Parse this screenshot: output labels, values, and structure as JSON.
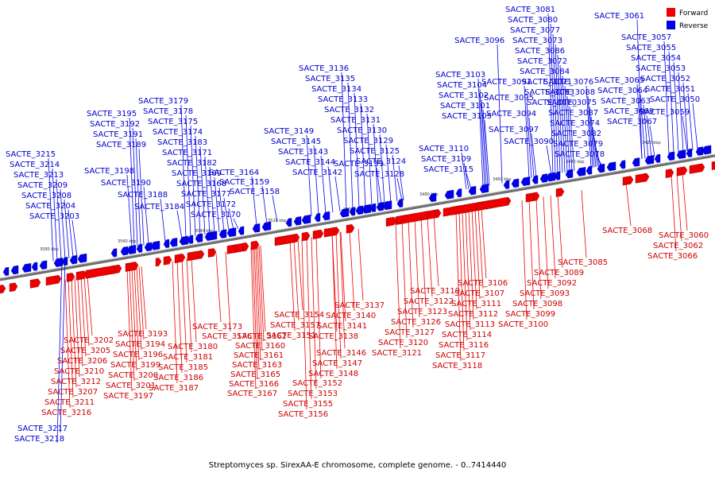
{
  "caption": "Streptomyces sp. SirexAA-E chromosome, complete genome. - 0..7414440",
  "legend": [
    {
      "label": "Forward",
      "color": "#ee0000"
    },
    {
      "label": "Reverse",
      "color": "#0000ee"
    }
  ],
  "axis_ticks": [
    "3580 kbp",
    "3560 kbp",
    "3540 kbp",
    "3520 kbp",
    "3500 kbp",
    "3480 kbp",
    "3460 kbp",
    "3440 kbp",
    "3420 kbp"
  ],
  "reverse_labels": [
    "SACTE_3215",
    "SACTE_3214",
    "SACTE_3213",
    "SACTE_3209",
    "SACTE_3208",
    "SACTE_3204",
    "SACTE_3203",
    "SACTE_3195",
    "SACTE_3192",
    "SACTE_3191",
    "SACTE_3189",
    "SACTE_3198",
    "SACTE_3190",
    "SACTE_3188",
    "SACTE_3184",
    "SACTE_3179",
    "SACTE_3178",
    "SACTE_3175",
    "SACTE_3174",
    "SACTE_3183",
    "SACTE_3171",
    "SACTE_3182",
    "SACTE_3169",
    "SACTE_3168",
    "SACTE_3177",
    "SACTE_3172",
    "SACTE_3170",
    "SACTE_3164",
    "SACTE_3159",
    "SACTE_3158",
    "SACTE_3149",
    "SACTE_3145",
    "SACTE_3143",
    "SACTE_3144",
    "SACTE_3142",
    "SACTE_3139",
    "SACTE_3136",
    "SACTE_3135",
    "SACTE_3134",
    "SACTE_3133",
    "SACTE_3132",
    "SACTE_3131",
    "SACTE_3130",
    "SACTE_3129",
    "SACTE_3125",
    "SACTE_3124",
    "SACTE_3128",
    "SACTE_3103",
    "SACTE_3104",
    "SACTE_3102",
    "SACTE_3101",
    "SACTE_3105",
    "SACTE_3110",
    "SACTE_3109",
    "SACTE_3115",
    "SACTE_3096",
    "SACTE_3091",
    "SACTE_3095",
    "SACTE_3094",
    "SACTE_3097",
    "SACTE_3090",
    "SACTE_3081",
    "SACTE_3080",
    "SACTE_3077",
    "SACTE_3073",
    "SACTE_3086",
    "SACTE_3072",
    "SACTE_3084",
    "SACTE_3071",
    "SACTE_3083",
    "SACTE_3070",
    "SACTE_3076",
    "SACTE_3088",
    "SACTE_3075",
    "SACTE_3087",
    "SACTE_3074",
    "SACTE_3082",
    "SACTE_3079",
    "SACTE_3078",
    "SACTE_3061",
    "SACTE_3057",
    "SACTE_3055",
    "SACTE_3054",
    "SACTE_3053",
    "SACTE_3052",
    "SACTE_3065",
    "SACTE_3064",
    "SACTE_3051",
    "SACTE_3063",
    "SACTE_3050",
    "SACTE_3069",
    "SACTE_3059",
    "SACTE_3067",
    "SACTE_3217",
    "SACTE_3218"
  ],
  "forward_labels": [
    "SACTE_3202",
    "SACTE_3205",
    "SACTE_3206",
    "SACTE_3210",
    "SACTE_3212",
    "SACTE_3207",
    "SACTE_3211",
    "SACTE_3216",
    "SACTE_3193",
    "SACTE_3194",
    "SACTE_3196",
    "SACTE_3199",
    "SACTE_3200",
    "SACTE_3201",
    "SACTE_3197",
    "SACTE_3180",
    "SACTE_3181",
    "SACTE_3185",
    "SACTE_3186",
    "SACTE_3187",
    "SACTE_3173",
    "SACTE_3176",
    "SACTE_3162",
    "SACTE_3160",
    "SACTE_3161",
    "SACTE_3163",
    "SACTE_3165",
    "SACTE_3166",
    "SACTE_3167",
    "SACTE_3154",
    "SACTE_3157",
    "SACTE_3151",
    "SACTE_3152",
    "SACTE_3153",
    "SACTE_3155",
    "SACTE_3156",
    "SACTE_3137",
    "SACTE_3140",
    "SACTE_3141",
    "SACTE_3138",
    "SACTE_3146",
    "SACTE_3147",
    "SACTE_3148",
    "SACTE_3119",
    "SACTE_3122",
    "SACTE_3123",
    "SACTE_3126",
    "SACTE_3127",
    "SACTE_3120",
    "SACTE_3121",
    "SACTE_3106",
    "SACTE_3107",
    "SACTE_3111",
    "SACTE_3112",
    "SACTE_3113",
    "SACTE_3114",
    "SACTE_3116",
    "SACTE_3117",
    "SACTE_3118",
    "SACTE_3089",
    "SACTE_3092",
    "SACTE_3093",
    "SACTE_3098",
    "SACTE_3099",
    "SACTE_3100",
    "SACTE_3085",
    "SACTE_3068",
    "SACTE_3060",
    "SACTE_3062",
    "SACTE_3066"
  ]
}
